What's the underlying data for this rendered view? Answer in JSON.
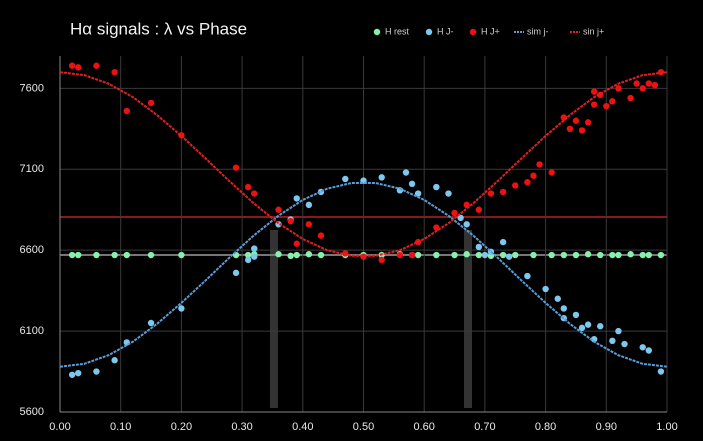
{
  "chart_data": {
    "type": "scatter",
    "title": "Hα signals : λ vs Phase",
    "xlim": [
      0,
      1
    ],
    "ylim": [
      5600,
      7800
    ],
    "xticks": [
      {
        "value": 0,
        "label": "0.00"
      },
      {
        "value": 0.1,
        "label": "0.10"
      },
      {
        "value": 0.2,
        "label": "0.20"
      },
      {
        "value": 0.3,
        "label": "0.30"
      },
      {
        "value": 0.4,
        "label": "0.40"
      },
      {
        "value": 0.5,
        "label": "0.50"
      },
      {
        "value": 0.6,
        "label": "0.60"
      },
      {
        "value": 0.7,
        "label": "0.70"
      },
      {
        "value": 0.8,
        "label": "0.80"
      },
      {
        "value": 0.9,
        "label": "0.90"
      },
      {
        "value": 1,
        "label": "1.00"
      }
    ],
    "yticks": [
      5600,
      6100,
      6600,
      7100,
      7600
    ],
    "grid": true,
    "legend": "top",
    "series": [
      {
        "name": "H rest",
        "color": "#86f0ad",
        "style": "marker",
        "x": [
          0.02,
          0.03,
          0.06,
          0.09,
          0.11,
          0.15,
          0.2,
          0.29,
          0.31,
          0.32,
          0.36,
          0.38,
          0.39,
          0.41,
          0.43,
          0.47,
          0.5,
          0.53,
          0.56,
          0.58,
          0.59,
          0.62,
          0.65,
          0.67,
          0.69,
          0.71,
          0.73,
          0.75,
          0.78,
          0.81,
          0.83,
          0.85,
          0.87,
          0.89,
          0.91,
          0.92,
          0.94,
          0.96,
          0.97,
          0.99
        ],
        "values": [
          6570,
          6570,
          6570,
          6570,
          6570,
          6570,
          6570,
          6570,
          6570,
          6575,
          6575,
          6565,
          6570,
          6575,
          6570,
          6570,
          6570,
          6570,
          6575,
          6570,
          6570,
          6570,
          6570,
          6575,
          6570,
          6565,
          6570,
          6570,
          6570,
          6570,
          6570,
          6570,
          6575,
          6570,
          6570,
          6570,
          6575,
          6570,
          6570,
          6570
        ]
      },
      {
        "name": "H J-",
        "color": "#7cc8ef",
        "style": "marker",
        "x": [
          0.02,
          0.03,
          0.06,
          0.09,
          0.11,
          0.15,
          0.2,
          0.29,
          0.31,
          0.32,
          0.32,
          0.36,
          0.38,
          0.39,
          0.41,
          0.43,
          0.47,
          0.5,
          0.53,
          0.56,
          0.57,
          0.58,
          0.59,
          0.62,
          0.64,
          0.66,
          0.67,
          0.69,
          0.7,
          0.71,
          0.73,
          0.74,
          0.77,
          0.8,
          0.82,
          0.83,
          0.83,
          0.85,
          0.86,
          0.87,
          0.88,
          0.89,
          0.91,
          0.92,
          0.93,
          0.96,
          0.97,
          0.99
        ],
        "values": [
          5830,
          5840,
          5850,
          5920,
          6030,
          6150,
          6240,
          6460,
          6540,
          6560,
          6610,
          6760,
          6790,
          6920,
          6880,
          6960,
          7040,
          7030,
          7050,
          6970,
          7080,
          7010,
          6950,
          6990,
          6950,
          6800,
          6760,
          6620,
          6570,
          6590,
          6650,
          6560,
          6440,
          6360,
          6300,
          6240,
          6180,
          6200,
          6120,
          6140,
          6050,
          6130,
          6040,
          6100,
          6020,
          6000,
          5980,
          5850
        ]
      },
      {
        "name": "H J+",
        "color": "#ee1111",
        "style": "marker",
        "x": [
          0.02,
          0.03,
          0.06,
          0.09,
          0.11,
          0.15,
          0.2,
          0.29,
          0.31,
          0.32,
          0.36,
          0.38,
          0.39,
          0.41,
          0.43,
          0.47,
          0.5,
          0.53,
          0.56,
          0.58,
          0.59,
          0.62,
          0.65,
          0.67,
          0.69,
          0.71,
          0.73,
          0.75,
          0.77,
          0.78,
          0.79,
          0.81,
          0.83,
          0.84,
          0.85,
          0.86,
          0.87,
          0.88,
          0.88,
          0.89,
          0.9,
          0.91,
          0.92,
          0.94,
          0.95,
          0.96,
          0.97,
          0.98,
          0.99
        ],
        "values": [
          7740,
          7730,
          7740,
          7700,
          7460,
          7510,
          7310,
          7110,
          6990,
          6950,
          6850,
          6780,
          6640,
          6760,
          6690,
          6580,
          6560,
          6540,
          6570,
          6570,
          6650,
          6740,
          6830,
          6880,
          6850,
          6950,
          6960,
          7000,
          7020,
          7060,
          7130,
          7080,
          7420,
          7350,
          7400,
          7340,
          7390,
          7500,
          7580,
          7560,
          7490,
          7520,
          7600,
          7540,
          7630,
          7600,
          7630,
          7620,
          7700
        ]
      },
      {
        "name": "sim j-",
        "color": "#5b9bd5",
        "style": "line",
        "x": [
          0,
          0.04,
          0.08,
          0.12,
          0.16,
          0.2,
          0.24,
          0.28,
          0.32,
          0.36,
          0.4,
          0.44,
          0.48,
          0.52,
          0.56,
          0.6,
          0.64,
          0.68,
          0.72,
          0.76,
          0.8,
          0.84,
          0.88,
          0.92,
          0.96,
          1
        ],
        "values": [
          5880,
          5898,
          5951,
          6034,
          6145,
          6274,
          6414,
          6557,
          6693,
          6813,
          6911,
          6980,
          7015,
          7015,
          6980,
          6911,
          6813,
          6693,
          6557,
          6414,
          6274,
          6145,
          6034,
          5951,
          5898,
          5880
        ]
      },
      {
        "name": "sin j+",
        "color": "#e02020",
        "style": "line",
        "x": [
          0,
          0.04,
          0.08,
          0.12,
          0.16,
          0.2,
          0.24,
          0.28,
          0.32,
          0.36,
          0.4,
          0.44,
          0.48,
          0.52,
          0.56,
          0.6,
          0.64,
          0.68,
          0.72,
          0.76,
          0.8,
          0.84,
          0.88,
          0.92,
          0.96,
          1
        ],
        "values": [
          7700,
          7682,
          7629,
          7546,
          7435,
          7306,
          7166,
          7023,
          6887,
          6767,
          6669,
          6600,
          6565,
          6565,
          6600,
          6669,
          6767,
          6887,
          7023,
          7166,
          7306,
          7435,
          7546,
          7629,
          7682,
          7700
        ]
      }
    ]
  }
}
